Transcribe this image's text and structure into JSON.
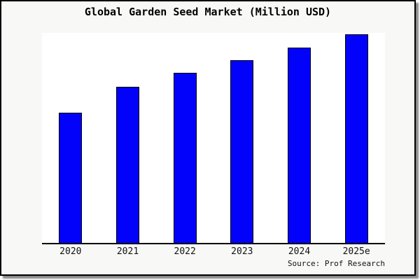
{
  "window": {
    "background": "#f8f8f7",
    "border_color": "#000000",
    "plot_background": "#ffffff"
  },
  "header": {
    "title": "Global Garden Seed Market (Million USD)"
  },
  "footer": {
    "source_label": "Source: Prof Research"
  },
  "chart_data": {
    "type": "bar",
    "title": "Global Garden Seed Market (Million USD)",
    "categories": [
      "2020",
      "2021",
      "2022",
      "2023",
      "2024",
      "2025e"
    ],
    "values": [
      186,
      223,
      243,
      261,
      279,
      298
    ],
    "values_note": "value axis is unlabeled in the chart (no ticks or gridlines); values are relative bar heights in screenshot pixels, baseline = 0",
    "xlabel": "",
    "ylabel": "",
    "grid": false,
    "legend": false,
    "bar_color": "#0202fa",
    "bar_border_color": "#000000",
    "axis_line_color": "#000000"
  }
}
